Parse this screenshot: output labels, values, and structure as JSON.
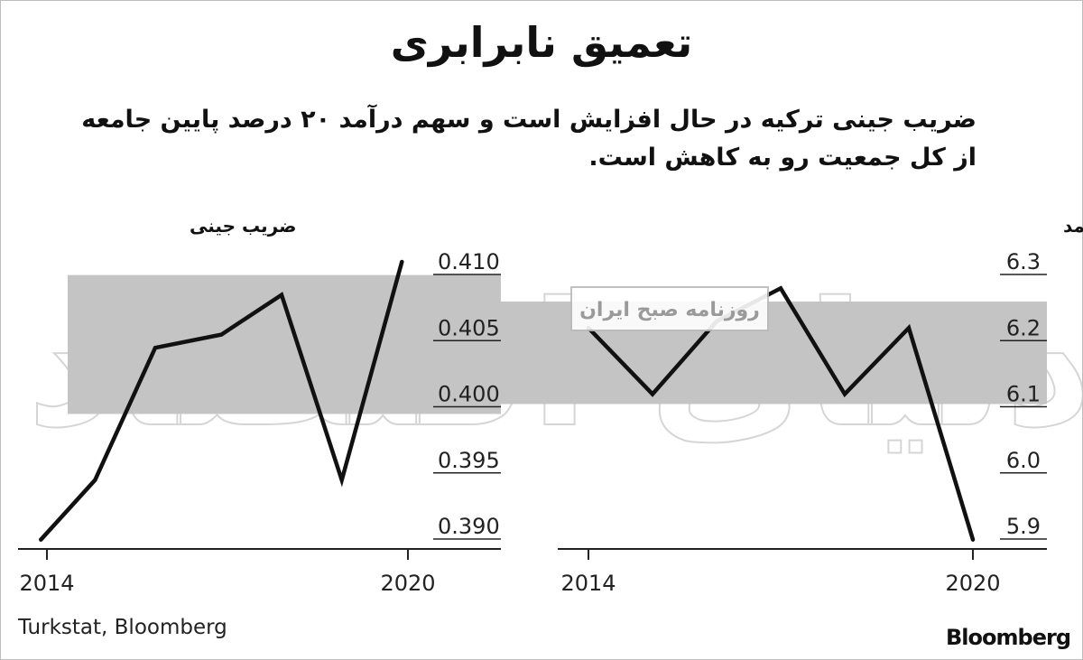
{
  "title": "تعمیق نابرابری",
  "subtitle": "ضریب جینی ترکیه در حال افزایش است  و سهم درآمد ۲۰ درصد پایین جامعه از کل جمعیت رو به کاهش است.",
  "source": "Turkstat, Bloomberg",
  "brand": "Bloomberg",
  "watermark": {
    "large": "دنیای اقتصاد",
    "badge": "روزنامه صبح ایران"
  },
  "colors": {
    "band": "#c4c4c4",
    "line": "#111111",
    "axis": "#222222"
  },
  "chart_data": [
    {
      "type": "line",
      "title": "ضریب جینی",
      "x_ticks": [
        "2014",
        "2020"
      ],
      "y_ticks": [
        "0.410",
        "0.405",
        "0.400",
        "0.395",
        "0.390"
      ],
      "xlim": [
        2014,
        2020
      ],
      "ylim": [
        0.3895,
        0.411
      ],
      "shaded_band": [
        0.3985,
        0.409
      ],
      "series": [
        {
          "x": [
            2013.9,
            2014.8,
            2015.8,
            2016.9,
            2017.9,
            2018.9,
            2019.9
          ],
          "y": [
            0.389,
            0.3935,
            0.4035,
            0.4045,
            0.4075,
            0.3935,
            0.41
          ]
        }
      ]
    },
    {
      "type": "line",
      "title": "سهم درآمد متعلق به دو دهک پایین جامعه به کل درآمد",
      "x_ticks": [
        "2014",
        "2020"
      ],
      "y_ticks": [
        "6.3",
        "6.2",
        "6.1",
        "6.0",
        "5.9"
      ],
      "xlim": [
        2014,
        2020
      ],
      "ylim": [
        5.88,
        6.31
      ],
      "shaded_band": [
        6.085,
        6.24
      ],
      "series": [
        {
          "x": [
            2014,
            2015,
            2016,
            2017,
            2018,
            2019,
            2020
          ],
          "y": [
            6.2,
            6.1,
            6.21,
            6.26,
            6.1,
            6.2,
            5.88
          ]
        }
      ]
    }
  ]
}
